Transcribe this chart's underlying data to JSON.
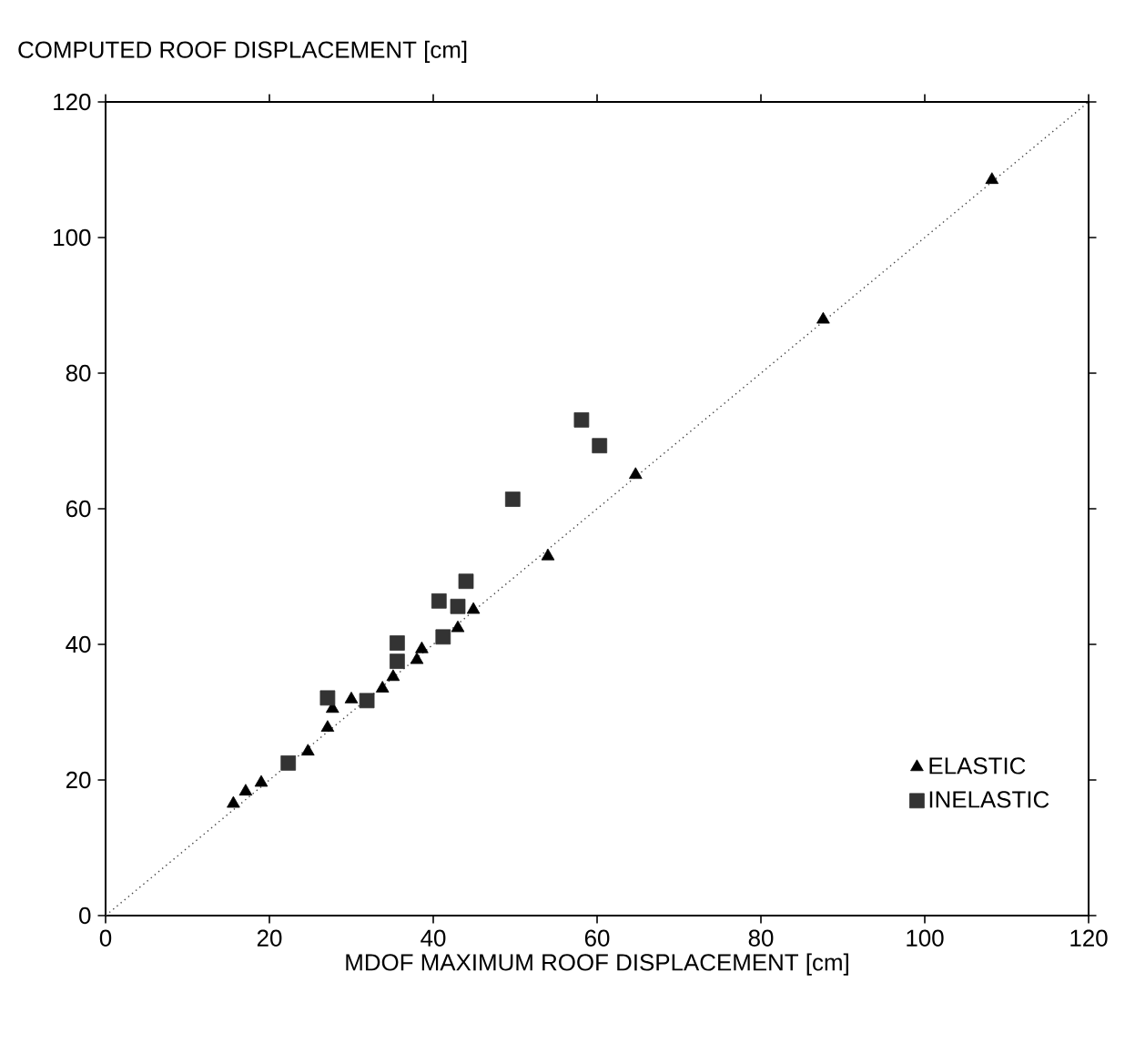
{
  "chart_data": {
    "type": "scatter",
    "xlabel": "MDOF MAXIMUM ROOF DISPLACEMENT [cm]",
    "ylabel": "COMPUTED ROOF DISPLACEMENT [cm]",
    "xlim": [
      0,
      120
    ],
    "ylim": [
      0,
      120
    ],
    "xticks": [
      0,
      20,
      40,
      60,
      80,
      100,
      120
    ],
    "yticks": [
      0,
      20,
      40,
      60,
      80,
      100,
      120
    ],
    "legend": "bottom right",
    "series": [
      {
        "name": "ELASTIC",
        "marker": "triangle",
        "color": "#000000",
        "x": [
          15.6,
          17.1,
          19,
          24.7,
          27.1,
          27.7,
          30,
          33.8,
          35.1,
          38,
          38.6,
          43,
          44.9,
          54,
          64.7,
          87.6,
          108.2
        ],
        "values": [
          16.5,
          18.3,
          19.6,
          24.2,
          27.7,
          30.5,
          31.9,
          33.5,
          35.2,
          37.7,
          39.3,
          42.4,
          45.1,
          53,
          65,
          87.9,
          108.5
        ]
      },
      {
        "name": "INELASTIC",
        "marker": "square",
        "color": "#333333",
        "x": [
          22.3,
          27.1,
          31.9,
          35.6,
          35.6,
          40.7,
          41.2,
          43,
          44,
          49.7,
          58.1,
          60.3
        ],
        "values": [
          22.5,
          32.1,
          31.7,
          37.5,
          40.2,
          46.4,
          41.1,
          45.6,
          49.3,
          61.4,
          73.1,
          69.3
        ]
      },
      {
        "type": "line",
        "marker": "none",
        "line_style": "dotted",
        "color": "#444444",
        "x": [
          0,
          120
        ],
        "values": [
          0,
          120
        ]
      }
    ]
  }
}
